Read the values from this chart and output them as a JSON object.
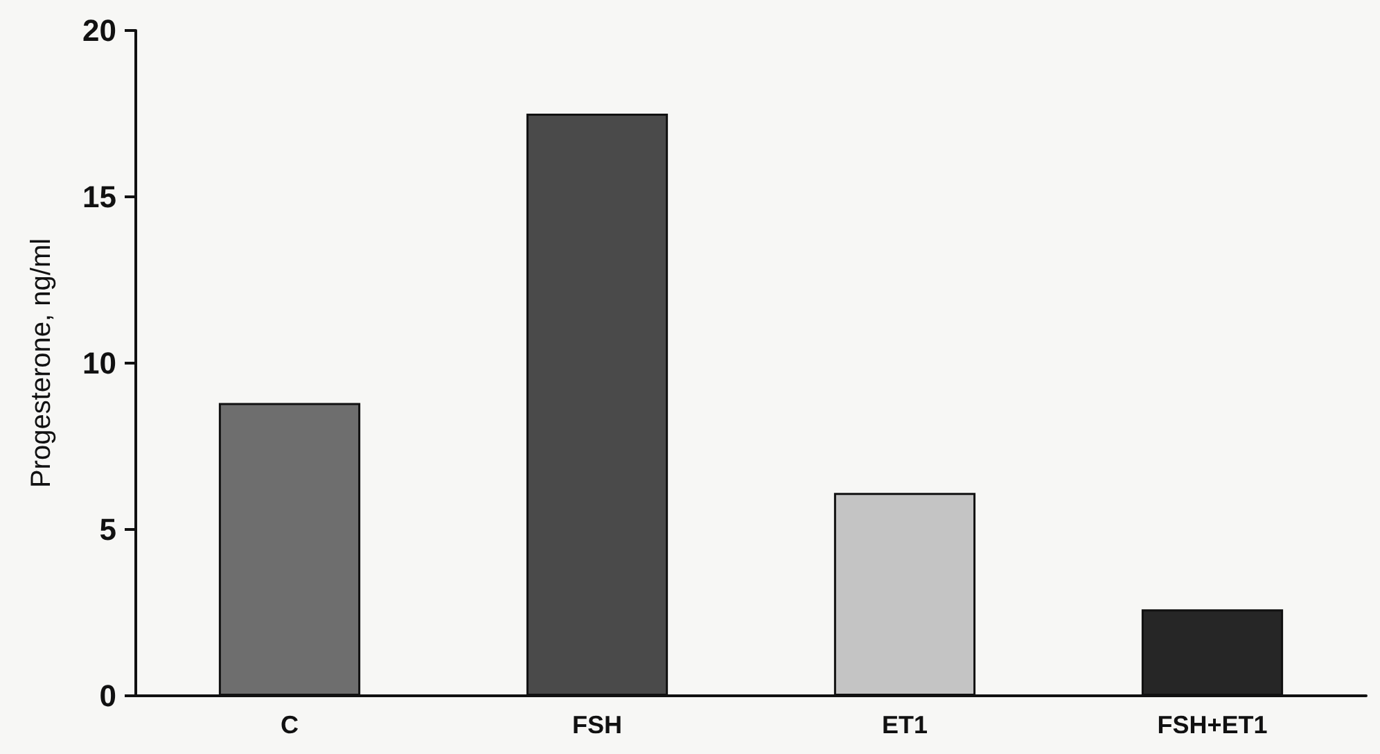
{
  "chart_data": {
    "type": "bar",
    "ylabel": "Progesterone, ng/ml",
    "categories": [
      "C",
      "FSH",
      "ET1",
      "FSH+ET1"
    ],
    "values": [
      8.8,
      17.5,
      6.1,
      2.6
    ],
    "colors": [
      "#6e6e6e",
      "#4a4a4a",
      "#c4c4c4",
      "#262626"
    ],
    "ylim": [
      0,
      20
    ],
    "yticks": [
      0,
      5,
      10,
      15,
      20
    ],
    "grid": false
  }
}
